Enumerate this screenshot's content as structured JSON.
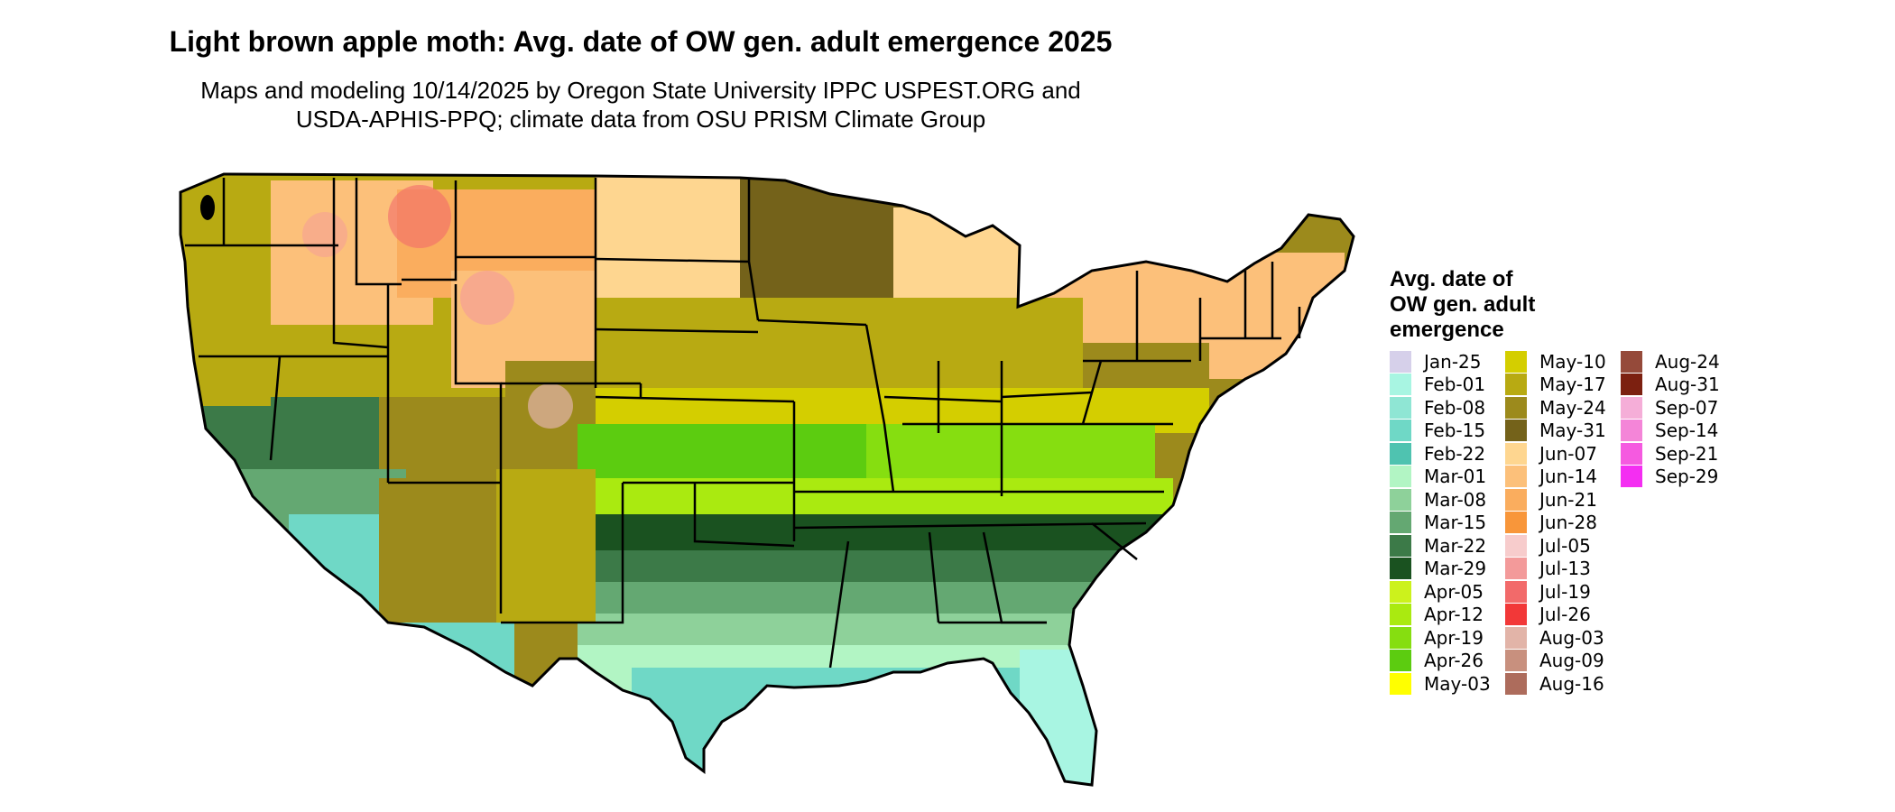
{
  "title": "Light brown apple moth: Avg. date of OW gen. adult emergence 2025",
  "subtitle_line1": "Maps and modeling 10/14/2025 by Oregon State University IPPC USPEST.ORG and",
  "subtitle_line2": "USDA-APHIS-PPQ; climate data from OSU PRISM Climate Group",
  "legend": {
    "title_line1": "Avg. date of",
    "title_line2": "OW gen. adult",
    "title_line3": "emergence",
    "columns": [
      [
        {
          "label": "Jan-25",
          "color": "#d6d0ea"
        },
        {
          "label": "Feb-01",
          "color": "#a8f5e2"
        },
        {
          "label": "Feb-08",
          "color": "#8fe6d4"
        },
        {
          "label": "Feb-15",
          "color": "#6fd8c6"
        },
        {
          "label": "Feb-22",
          "color": "#4fc3b0"
        },
        {
          "label": "Mar-01",
          "color": "#b2f5c4"
        },
        {
          "label": "Mar-08",
          "color": "#8ed19a"
        },
        {
          "label": "Mar-15",
          "color": "#64a872"
        },
        {
          "label": "Mar-22",
          "color": "#3c7a48"
        },
        {
          "label": "Mar-29",
          "color": "#1a5220"
        },
        {
          "label": "Apr-05",
          "color": "#ccf21c"
        },
        {
          "label": "Apr-12",
          "color": "#aaea10"
        },
        {
          "label": "Apr-19",
          "color": "#86de10"
        },
        {
          "label": "Apr-26",
          "color": "#5ccc10"
        },
        {
          "label": "May-03",
          "color": "#ffff00"
        }
      ],
      [
        {
          "label": "May-10",
          "color": "#d4ce00"
        },
        {
          "label": "May-17",
          "color": "#b8aa12"
        },
        {
          "label": "May-24",
          "color": "#9c8a1c"
        },
        {
          "label": "May-31",
          "color": "#74621a"
        },
        {
          "label": "Jun-07",
          "color": "#fed690"
        },
        {
          "label": "Jun-14",
          "color": "#fcc07a"
        },
        {
          "label": "Jun-21",
          "color": "#faad5e"
        },
        {
          "label": "Jun-28",
          "color": "#f8963a"
        },
        {
          "label": "Jul-05",
          "color": "#f7cccc"
        },
        {
          "label": "Jul-13",
          "color": "#f39a9a"
        },
        {
          "label": "Jul-19",
          "color": "#f26a6a"
        },
        {
          "label": "Jul-26",
          "color": "#f23838"
        },
        {
          "label": "Aug-03",
          "color": "#e2b4a8"
        },
        {
          "label": "Aug-09",
          "color": "#c8907e"
        },
        {
          "label": "Aug-16",
          "color": "#ad6c5c"
        }
      ],
      [
        {
          "label": "Aug-24",
          "color": "#954a3a"
        },
        {
          "label": "Aug-31",
          "color": "#7c2010"
        },
        {
          "label": "Sep-07",
          "color": "#f5aed8"
        },
        {
          "label": "Sep-14",
          "color": "#f485d8"
        },
        {
          "label": "Sep-21",
          "color": "#f55ae0"
        },
        {
          "label": "Sep-29",
          "color": "#f42ef2"
        }
      ]
    ]
  }
}
